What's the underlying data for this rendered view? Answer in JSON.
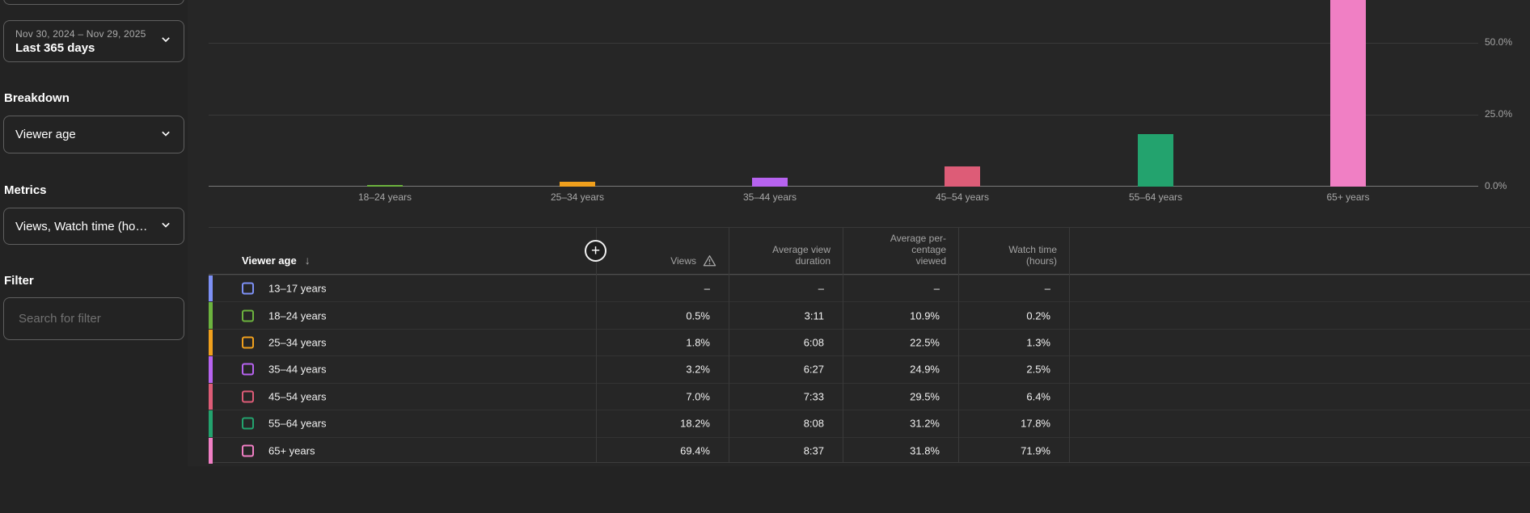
{
  "sidebar": {
    "date_range": {
      "range_label": "Nov 30, 2024 – Nov 29, 2025",
      "preset_label": "Last 365 days"
    },
    "breakdown": {
      "heading": "Breakdown",
      "value": "Viewer age"
    },
    "metrics": {
      "heading": "Metrics",
      "value": "Views, Watch time (ho…"
    },
    "filter": {
      "heading": "Filter",
      "placeholder": "Search for filter"
    }
  },
  "chart_data": {
    "type": "bar",
    "title": "",
    "xlabel": "",
    "ylabel": "",
    "unit": "%",
    "categories": [
      "18–24 years",
      "25–34 years",
      "35–44 years",
      "45–54 years",
      "55–64 years",
      "65+ years"
    ],
    "values": [
      0.5,
      1.8,
      3.2,
      7.0,
      18.2,
      69.4
    ],
    "colors": [
      "#6cb33e",
      "#f0a01d",
      "#b763f0",
      "#dd5c77",
      "#23a36e",
      "#f07fc4"
    ],
    "y_ticks": [
      {
        "value": 0,
        "label": "0.0%"
      },
      {
        "value": 25,
        "label": "25.0%"
      },
      {
        "value": 50,
        "label": "50.0%"
      }
    ],
    "ylim": [
      0,
      64.9
    ],
    "grid": true,
    "legend_position": "none",
    "note": "65+ bar (69.4%) is clipped at the top of the visible plot area"
  },
  "table": {
    "sort_icon": "↓",
    "add_button": "+",
    "columns": [
      {
        "id": "viewer_age",
        "label_lines": [
          "Viewer age"
        ],
        "sorted": "desc"
      },
      {
        "id": "views",
        "label_lines": [
          "Views"
        ],
        "warning": true
      },
      {
        "id": "avg_view_duration",
        "label_lines": [
          "Average view",
          "duration"
        ]
      },
      {
        "id": "avg_percentage_viewed",
        "label_lines": [
          "Average per-",
          "centage",
          "viewed"
        ]
      },
      {
        "id": "watch_time",
        "label_lines": [
          "Watch time",
          "(hours)"
        ]
      }
    ],
    "rows": [
      {
        "color": "#7d90f5",
        "label": "13–17 years",
        "views": "–",
        "avg_view_duration": "–",
        "avg_percentage_viewed": "–",
        "watch_time": "–"
      },
      {
        "color": "#6cb33e",
        "label": "18–24 years",
        "views": "0.5%",
        "avg_view_duration": "3:11",
        "avg_percentage_viewed": "10.9%",
        "watch_time": "0.2%"
      },
      {
        "color": "#f0a01d",
        "label": "25–34 years",
        "views": "1.8%",
        "avg_view_duration": "6:08",
        "avg_percentage_viewed": "22.5%",
        "watch_time": "1.3%"
      },
      {
        "color": "#b763f0",
        "label": "35–44 years",
        "views": "3.2%",
        "avg_view_duration": "6:27",
        "avg_percentage_viewed": "24.9%",
        "watch_time": "2.5%"
      },
      {
        "color": "#dd5c77",
        "label": "45–54 years",
        "views": "7.0%",
        "avg_view_duration": "7:33",
        "avg_percentage_viewed": "29.5%",
        "watch_time": "6.4%"
      },
      {
        "color": "#23a36e",
        "label": "55–64 years",
        "views": "18.2%",
        "avg_view_duration": "8:08",
        "avg_percentage_viewed": "31.2%",
        "watch_time": "17.8%"
      },
      {
        "color": "#f07fc4",
        "label": "65+ years",
        "views": "69.4%",
        "avg_view_duration": "8:37",
        "avg_percentage_viewed": "31.8%",
        "watch_time": "71.9%"
      }
    ]
  }
}
